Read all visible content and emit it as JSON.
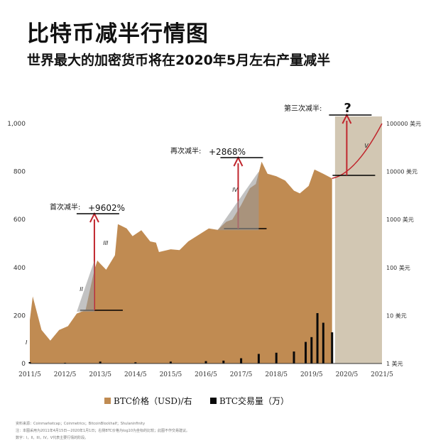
{
  "title": "比特币减半行情图",
  "subtitle": "世界最大的加密货币将在2020年5月左右产量减半",
  "colors": {
    "price": "#c08b52",
    "volume": "#0a0a0a",
    "forecast_bg": "#d2c7b3",
    "arrow": "#c0262d",
    "triangle": "#9a9a9a"
  },
  "legend": {
    "price_label": "BTC价格（USD)/右",
    "volume_label": "BTC交易量（万）"
  },
  "footnotes": [
    "资料来源：Coinmarketcap；Coinmetrics；BitcoinBlockhalf；Shulaninfinity",
    "注：本图采用为2011年4月15日—2020年1月1日；右侧BTC价格为log10为坐标的比较；此图不作交易建议。",
    "数字：I，II，III，IV，V代表主要行情的阶段。"
  ],
  "chart_data": {
    "type": "area",
    "x_ticks": [
      "2011/5",
      "2012/5",
      "2013/5",
      "2014/5",
      "2015/5",
      "2016/5",
      "2017/5",
      "2018/5",
      "2019/5",
      "2020/5",
      "2021/5"
    ],
    "left_axis": {
      "ticks": [
        "0",
        "200",
        "400",
        "600",
        "800",
        "1,000"
      ],
      "ylim": [
        0,
        1000
      ]
    },
    "right_axis": {
      "scale": "log",
      "ticks": [
        "1 美元",
        "10 美元",
        "100 美元",
        "1000 美元",
        "10000 美元",
        "100000 美元"
      ],
      "ylim": [
        1,
        100000
      ]
    },
    "series": [
      {
        "name": "BTC价格（USD)/右",
        "kind": "area-log",
        "points": [
          [
            "2011/5",
            8
          ],
          [
            "2011/6",
            25
          ],
          [
            "2011/9",
            5
          ],
          [
            "2011/12",
            3
          ],
          [
            "2012/3",
            5
          ],
          [
            "2012/6",
            6
          ],
          [
            "2012/9",
            11
          ],
          [
            "2012/12",
            13
          ],
          [
            "2013/3",
            90
          ],
          [
            "2013/4",
            140
          ],
          [
            "2013/5",
            120
          ],
          [
            "2013/7",
            90
          ],
          [
            "2013/10",
            180
          ],
          [
            "2013/11",
            800
          ],
          [
            "2013/12",
            750
          ],
          [
            "2014/2",
            650
          ],
          [
            "2014/4",
            450
          ],
          [
            "2014/7",
            600
          ],
          [
            "2014/10",
            350
          ],
          [
            "2014/12",
            330
          ],
          [
            "2015/1",
            210
          ],
          [
            "2015/5",
            240
          ],
          [
            "2015/8",
            230
          ],
          [
            "2015/11",
            350
          ],
          [
            "2016/1",
            420
          ],
          [
            "2016/6",
            650
          ],
          [
            "2016/9",
            610
          ],
          [
            "2016/12",
            900
          ],
          [
            "2017/2",
            1000
          ],
          [
            "2017/5",
            2000
          ],
          [
            "2017/8",
            4500
          ],
          [
            "2017/10",
            5500
          ],
          [
            "2017/12",
            16000
          ],
          [
            "2018/2",
            9000
          ],
          [
            "2018/5",
            8000
          ],
          [
            "2018/8",
            6500
          ],
          [
            "2018/11",
            4000
          ],
          [
            "2019/1",
            3500
          ],
          [
            "2019/4",
            5000
          ],
          [
            "2019/6",
            11000
          ],
          [
            "2019/9",
            9000
          ],
          [
            "2019/12",
            7200
          ]
        ]
      },
      {
        "name": "BTC交易量（万）",
        "kind": "bars-left",
        "points": [
          [
            "2011/5",
            6
          ],
          [
            "2012/5",
            3
          ],
          [
            "2013/5",
            8
          ],
          [
            "2014/5",
            5
          ],
          [
            "2015/5",
            8
          ],
          [
            "2016/5",
            10
          ],
          [
            "2016/11",
            12
          ],
          [
            "2017/5",
            22
          ],
          [
            "2017/11",
            40
          ],
          [
            "2018/5",
            45
          ],
          [
            "2018/11",
            50
          ],
          [
            "2019/3",
            90
          ],
          [
            "2019/5",
            110
          ],
          [
            "2019/7",
            210
          ],
          [
            "2019/9",
            170
          ],
          [
            "2019/12",
            130
          ]
        ]
      }
    ],
    "forecast": {
      "start": "2020/1",
      "end": "2021/5"
    },
    "annotations": [
      {
        "label": "首次减半:",
        "change": "+9602%",
        "date": "2012/11",
        "phase": "I"
      },
      {
        "label": "再次减半:",
        "change": "+2868%",
        "date": "2016/7"
      },
      {
        "label": "第三次减半:",
        "change": "?",
        "date": "2020/5"
      },
      {
        "phase": "II"
      },
      {
        "phase": "III"
      },
      {
        "phase": "IV"
      },
      {
        "phase": "V"
      }
    ]
  }
}
